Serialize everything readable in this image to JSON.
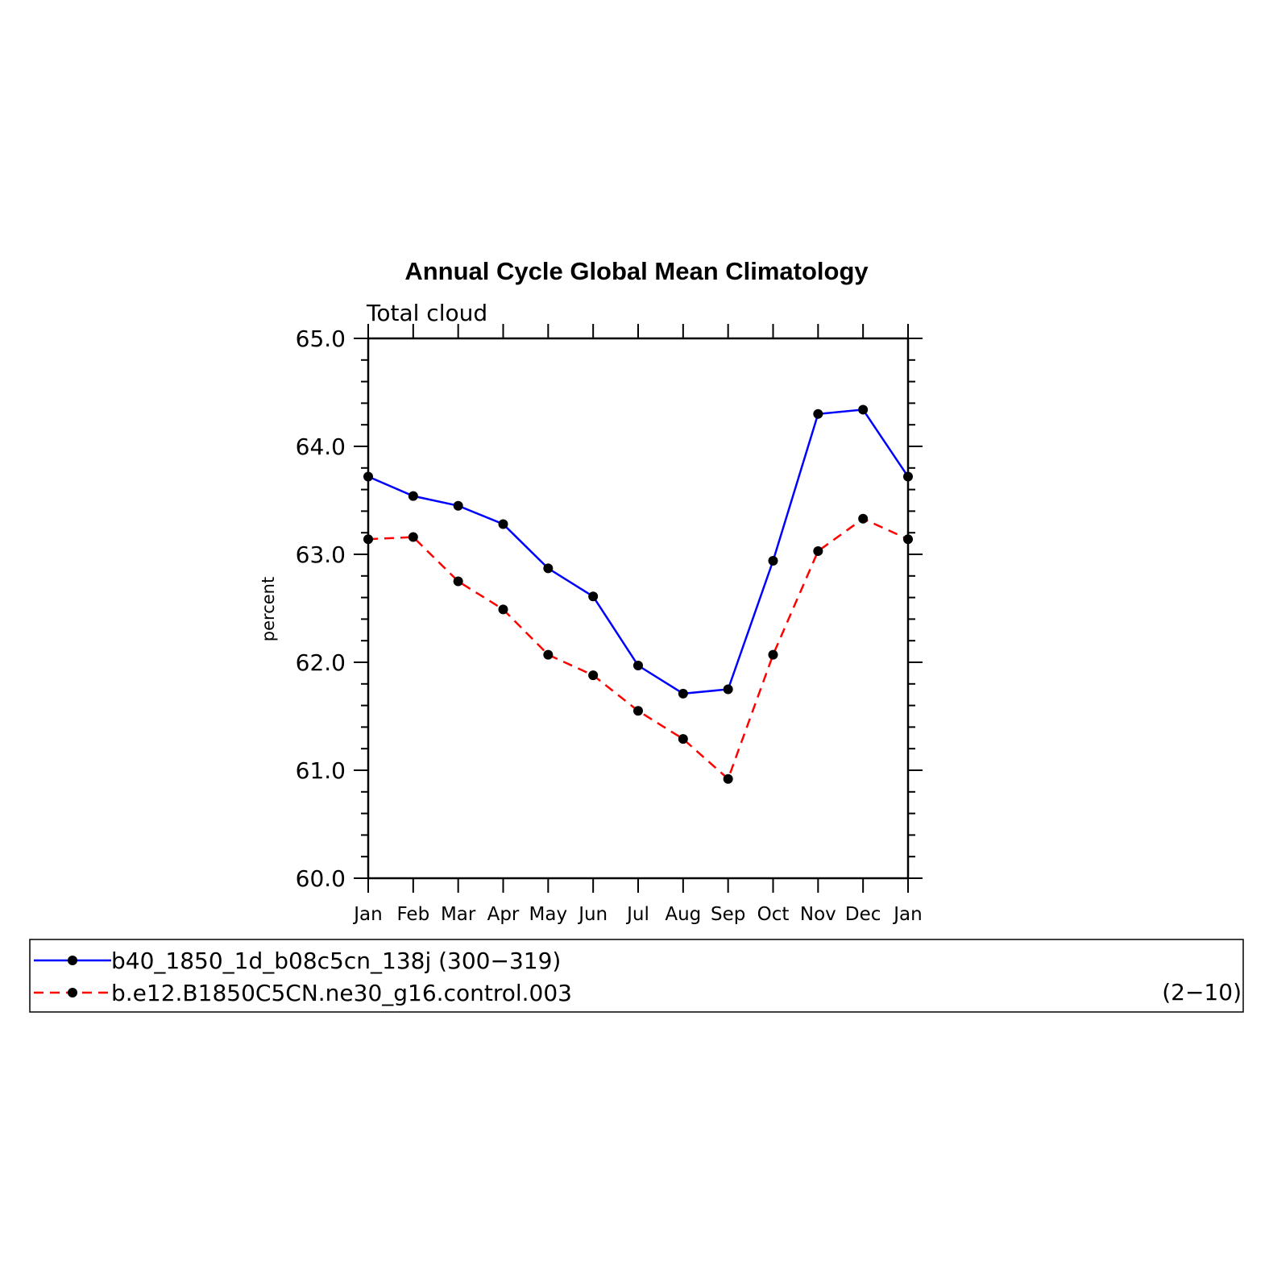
{
  "chart_data": {
    "type": "line",
    "title": "Annual Cycle Global Mean Climatology",
    "subtitle": "Total cloud",
    "xlabel": "",
    "ylabel": "percent",
    "categories": [
      "Jan",
      "Feb",
      "Mar",
      "Apr",
      "May",
      "Jun",
      "Jul",
      "Aug",
      "Sep",
      "Oct",
      "Nov",
      "Dec",
      "Jan"
    ],
    "ylim": [
      60.0,
      65.0
    ],
    "yticks": [
      "60.0",
      "61.0",
      "62.0",
      "63.0",
      "64.0",
      "65.0"
    ],
    "series": [
      {
        "name": "b40_1850_1d_b08c5cn_138j (300−319)",
        "color": "#0000ff",
        "style": "solid",
        "values": [
          63.72,
          63.54,
          63.45,
          63.28,
          62.87,
          62.61,
          61.97,
          61.71,
          61.75,
          62.94,
          64.3,
          64.34,
          63.72
        ]
      },
      {
        "name": "b.e12.B1850C5CN.ne30_g16.control.003",
        "color": "#ff0000",
        "style": "dashed",
        "values": [
          63.14,
          63.16,
          62.75,
          62.49,
          62.07,
          61.88,
          61.55,
          61.29,
          60.92,
          62.07,
          63.03,
          63.33,
          63.14
        ]
      }
    ]
  },
  "legend": {
    "years_note": "(2−10)"
  }
}
